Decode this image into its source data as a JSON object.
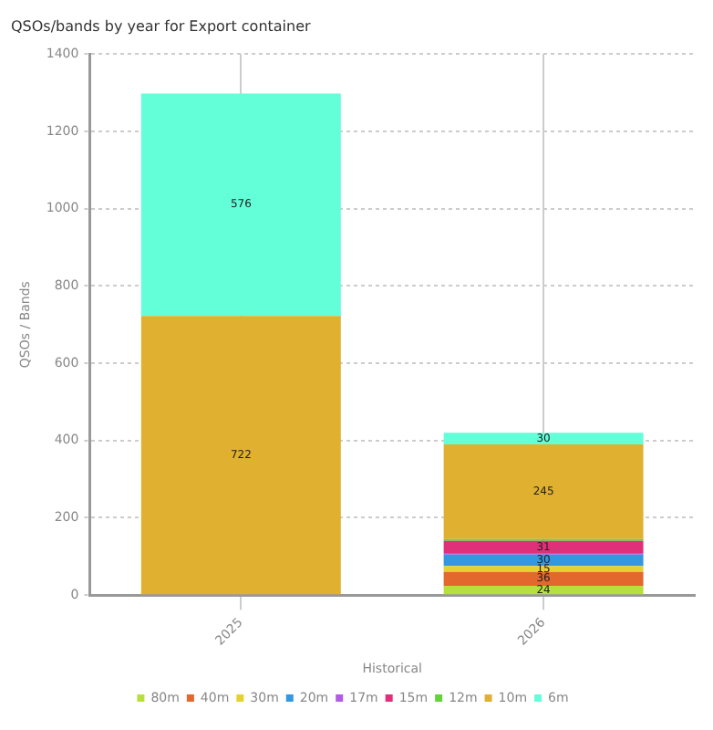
{
  "chart_data": {
    "type": "bar",
    "title": "QSOs/bands by year for Export container",
    "xlabel": "Historical",
    "ylabel": "QSOs / Bands",
    "categories": [
      "2025",
      "2026"
    ],
    "stacked": true,
    "series": [
      {
        "name": "80m",
        "color": "#b8e03a",
        "values": [
          null,
          24
        ],
        "value_labels": [
          null,
          "24"
        ]
      },
      {
        "name": "40m",
        "color": "#e2682e",
        "values": [
          null,
          36
        ],
        "value_labels": [
          null,
          "36"
        ]
      },
      {
        "name": "30m",
        "color": "#e6d22e",
        "values": [
          null,
          15
        ],
        "value_labels": [
          null,
          "15"
        ]
      },
      {
        "name": "20m",
        "color": "#3398e0",
        "values": [
          null,
          30
        ],
        "value_labels": [
          null,
          "30"
        ]
      },
      {
        "name": "17m",
        "color": "#b35ae6",
        "values": [
          null,
          4
        ],
        "value_labels": [
          null,
          null
        ]
      },
      {
        "name": "15m",
        "color": "#e0307a",
        "values": [
          null,
          31
        ],
        "value_labels": [
          null,
          "31"
        ]
      },
      {
        "name": "12m",
        "color": "#62d43a",
        "values": [
          null,
          5
        ],
        "value_labels": [
          null,
          null
        ]
      },
      {
        "name": "10m",
        "color": "#e0b030",
        "values": [
          722,
          245
        ],
        "value_labels": [
          "722",
          "245"
        ]
      },
      {
        "name": "6m",
        "color": "#62ffd8",
        "values": [
          576,
          30
        ],
        "value_labels": [
          "576",
          "30"
        ]
      }
    ],
    "ylim": [
      0,
      1400
    ],
    "yticks": [
      0,
      200,
      400,
      600,
      800,
      1000,
      1200,
      1400
    ],
    "grid": true,
    "legend": "bottom"
  }
}
